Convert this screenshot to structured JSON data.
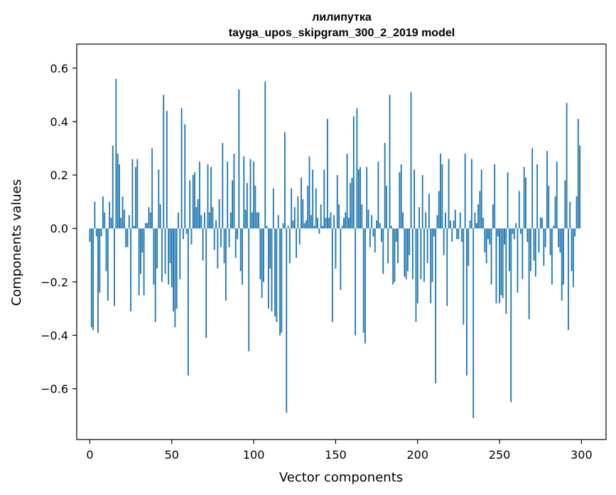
{
  "chart_data": {
    "type": "bar",
    "title": "лилипутка",
    "subtitle": "tayga_upos_skipgram_300_2_2019 model",
    "xlabel": "Vector components",
    "ylabel": "Components values",
    "xlim": [
      -8,
      315
    ],
    "ylim": [
      -0.79,
      0.69
    ],
    "xticks": [
      0,
      50,
      100,
      150,
      200,
      250,
      300
    ],
    "yticks": [
      -0.6,
      -0.4,
      -0.2,
      0.0,
      0.2,
      0.4,
      0.6
    ],
    "ytick_labels": [
      "−0.6",
      "−0.4",
      "−0.2",
      "0.0",
      "0.2",
      "0.4",
      "0.6"
    ],
    "bar_color": "#1f77b4",
    "values": [
      -0.05,
      -0.37,
      -0.38,
      0.1,
      -0.03,
      -0.39,
      -0.24,
      -0.03,
      0.12,
      0.06,
      -0.16,
      -0.27,
      0.1,
      0.04,
      0.31,
      -0.29,
      0.56,
      0.28,
      0.24,
      0.04,
      0.12,
      0.07,
      -0.07,
      -0.07,
      0.05,
      -0.31,
      0.26,
      0.01,
      0.23,
      0.26,
      -0.25,
      -0.17,
      -0.09,
      -0.25,
      0.02,
      0.02,
      0.08,
      0.06,
      0.3,
      -0.21,
      -0.35,
      -0.15,
      0.22,
      0.09,
      -0.2,
      0.5,
      -0.17,
      0.44,
      -0.21,
      -0.13,
      -0.22,
      -0.31,
      -0.37,
      -0.3,
      0.06,
      -0.19,
      0.45,
      -0.04,
      0.39,
      -0.02,
      -0.55,
      0.18,
      -0.06,
      0.2,
      0.21,
      0.08,
      0.11,
      0.25,
      0.05,
      -0.12,
      0.06,
      -0.41,
      0.24,
      0.06,
      0.23,
      0.08,
      -0.08,
      0.03,
      -0.15,
      0.11,
      -0.07,
      0.32,
      -0.13,
      -0.27,
      0.25,
      -0.07,
      0.06,
      0.18,
      0.28,
      -0.11,
      -0.04,
      0.52,
      -0.16,
      -0.21,
      0.27,
      0.07,
      0.17,
      -0.46,
      0.26,
      0.06,
      0.25,
      0.16,
      0.06,
      0.06,
      -0.19,
      -0.26,
      -0.2,
      0.55,
      0.01,
      -0.3,
      -0.15,
      -0.31,
      0.15,
      -0.33,
      -0.35,
      0.05,
      -0.4,
      -0.39,
      0.02,
      0.36,
      -0.69,
      0.01,
      -0.13,
      0.15,
      0.03,
      0.08,
      -0.11,
      0.12,
      -0.06,
      0.19,
      0.11,
      0.02,
      0.03,
      0.16,
      0.27,
      0.05,
      0.22,
      0.01,
      0.15,
      0.04,
      -0.02,
      0.09,
      0.01,
      0.22,
      0.04,
      0.41,
      0.04,
      0.06,
      -0.35,
      0.05,
      -0.15,
      0.2,
      0.09,
      -0.23,
      0.01,
      0.04,
      0.06,
      0.28,
      0.04,
      0.17,
      0.19,
      0.42,
      -0.4,
      0.45,
      0.22,
      0.23,
      0.09,
      -0.39,
      -0.43,
      0.23,
      0.07,
      -0.07,
      0.05,
      -0.03,
      -0.09,
      0.03,
      0.25,
      0.02,
      -0.05,
      -0.17,
      0.32,
      0.16,
      -0.13,
      0.5,
      0.01,
      -0.21,
      -0.2,
      -0.05,
      -0.13,
      0.21,
      0.24,
      0.06,
      -0.18,
      -0.19,
      -0.16,
      -0.1,
      0.51,
      -0.19,
      0.22,
      -0.35,
      -0.28,
      0.08,
      -0.19,
      0.2,
      -0.2,
      0.06,
      -0.13,
      0.13,
      -0.28,
      -0.2,
      -0.03,
      -0.58,
      0.05,
      0.14,
      0.28,
      0.24,
      -0.1,
      0.06,
      -0.29,
      0.26,
      0.03,
      -0.05,
      0.03,
      0.07,
      -0.04,
      -0.04,
      0.06,
      -0.05,
      -0.36,
      0.28,
      -0.55,
      -0.14,
      0.03,
      0.26,
      -0.71,
      0.06,
      0.02,
      0.09,
      0.14,
      0.22,
      0.04,
      -0.09,
      -0.13,
      -0.04,
      -0.06,
      -0.21,
      0.09,
      0.24,
      -0.28,
      -0.03,
      -0.28,
      -0.25,
      -0.26,
      -0.06,
      -0.32,
      0.21,
      -0.16,
      -0.65,
      -0.02,
      -0.04,
      0.02,
      -0.24,
      0.14,
      -0.02,
      -0.19,
      0.23,
      0.19,
      -0.05,
      -0.34,
      -0.16,
      0.3,
      -0.12,
      -0.18,
      0.24,
      -0.09,
      0.04,
      0.04,
      -0.14,
      -0.07,
      0.29,
      0.16,
      -0.1,
      -0.21,
      0.01,
      0.12,
      0.25,
      -0.07,
      -0.09,
      -0.27,
      -0.21,
      0.18,
      0.47,
      -0.38,
      0.1,
      -0.16,
      -0.22,
      -0.03,
      0.12,
      0.41,
      0.31
    ]
  }
}
